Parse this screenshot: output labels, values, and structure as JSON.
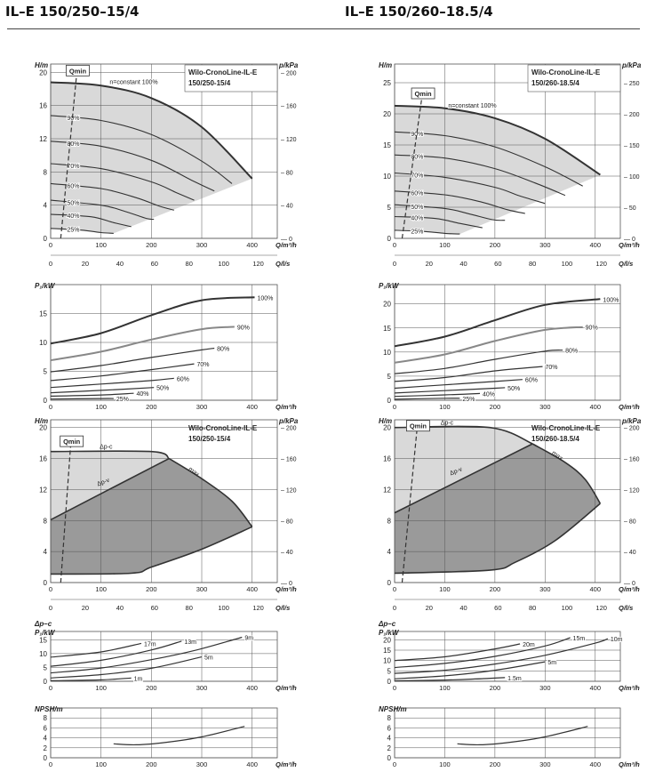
{
  "headers": {
    "left": "IL–E 150/250–15/4",
    "right": "IL–E 150/260–18.5/4"
  },
  "axes": {
    "H": "H/m",
    "p": "p/kPa",
    "Q": "Q/m³/h",
    "Ql": "Q/l/s",
    "P1": "P₁/kW",
    "dpc": "Δp–c",
    "NPSH": "NPSH/m"
  },
  "model_labels": {
    "left": [
      "Wilo-CronoLine-IL-E",
      "150/250-15/4"
    ],
    "right": [
      "Wilo-CronoLine-IL-E",
      "150/260-18.5/4"
    ]
  },
  "qmin": "Qmin",
  "nconst": "n=constant 100%",
  "dp_labels": {
    "c": "Δp-c",
    "v": "Δp-v",
    "max": "max"
  },
  "colors": {
    "curve": "#333333",
    "grey_curve": "#888888",
    "fill_light": "#d9d9d9",
    "fill_dark": "#9a9a9a",
    "grid": "#555555"
  },
  "chart_data": [
    {
      "id": "L1",
      "type": "line",
      "title": "Wilo-CronoLine-IL-E 150/250-15/4",
      "xlabel": "Q/m³/h",
      "ylabel": "H/m",
      "y2label": "p/kPa",
      "x2label": "Q/l/s",
      "xlim": [
        0,
        450
      ],
      "ylim": [
        0,
        21
      ],
      "xticks": [
        0,
        100,
        200,
        300,
        400
      ],
      "yticks": [
        0,
        4,
        8,
        12,
        16,
        20
      ],
      "y2ticks": [
        "0",
        "40",
        "80",
        "120",
        "160",
        "200"
      ],
      "x2ticks": [
        "0",
        "20",
        "40",
        "60",
        "80",
        "100",
        "120"
      ],
      "envelope": {
        "x": [
          0,
          100,
          200,
          300,
          400
        ],
        "y": [
          18.8,
          18.4,
          16.9,
          13.4,
          7.2
        ]
      },
      "series": [
        {
          "label": "90%",
          "x": [
            0,
            100,
            200,
            300,
            360
          ],
          "y": [
            14.8,
            14.2,
            12.5,
            9.3,
            6.6
          ]
        },
        {
          "label": "80%",
          "x": [
            0,
            100,
            200,
            280,
            325
          ],
          "y": [
            11.7,
            11.1,
            9.4,
            7.0,
            5.7
          ]
        },
        {
          "label": "70%",
          "x": [
            0,
            100,
            200,
            250,
            285
          ],
          "y": [
            9.0,
            8.4,
            6.8,
            5.5,
            4.6
          ]
        },
        {
          "label": "60%",
          "x": [
            0,
            100,
            170,
            215,
            245
          ],
          "y": [
            6.6,
            6.0,
            4.9,
            3.9,
            3.4
          ]
        },
        {
          "label": "50%",
          "x": [
            0,
            100,
            150,
            190,
            205
          ],
          "y": [
            4.6,
            4.0,
            3.2,
            2.4,
            2.3
          ]
        },
        {
          "label": "40%",
          "x": [
            0,
            80,
            125,
            160
          ],
          "y": [
            2.9,
            2.6,
            1.9,
            1.4
          ]
        },
        {
          "label": "25%",
          "x": [
            0,
            60,
            100,
            125
          ],
          "y": [
            1.2,
            1.0,
            0.7,
            0.6
          ]
        }
      ],
      "qmin_line": {
        "x": [
          20,
          52
        ],
        "y": [
          0,
          20
        ]
      }
    },
    {
      "id": "L2",
      "type": "line",
      "ylabel": "P₁/kW",
      "xlabel": "Q/m³/h",
      "xlim": [
        0,
        450
      ],
      "ylim": [
        0,
        20
      ],
      "xticks": [
        0,
        100,
        200,
        300,
        400
      ],
      "yticks": [
        0,
        5,
        10,
        15
      ],
      "series": [
        {
          "name": "100%",
          "x": [
            0,
            100,
            200,
            300,
            405
          ],
          "y": [
            9.8,
            11.6,
            14.7,
            17.3,
            17.8
          ]
        },
        {
          "name": "90%",
          "x": [
            0,
            100,
            200,
            300,
            365
          ],
          "y": [
            6.9,
            8.4,
            10.5,
            12.3,
            12.7
          ],
          "grey": true
        },
        {
          "name": "80%",
          "x": [
            0,
            100,
            200,
            300,
            325
          ],
          "y": [
            4.9,
            6.0,
            7.4,
            8.7,
            9.0
          ]
        },
        {
          "name": "70%",
          "x": [
            0,
            100,
            200,
            285
          ],
          "y": [
            3.4,
            4.2,
            5.3,
            6.3
          ]
        },
        {
          "name": "60%",
          "x": [
            0,
            100,
            200,
            245
          ],
          "y": [
            2.2,
            2.8,
            3.4,
            3.8
          ]
        },
        {
          "name": "50%",
          "x": [
            0,
            100,
            205
          ],
          "y": [
            1.3,
            1.7,
            2.2
          ]
        },
        {
          "name": "40%",
          "x": [
            0,
            100,
            165
          ],
          "y": [
            0.7,
            0.9,
            1.2
          ]
        },
        {
          "name": "25%",
          "x": [
            0,
            100,
            125
          ],
          "y": [
            0.2,
            0.3,
            0.3
          ]
        }
      ]
    },
    {
      "id": "L3",
      "type": "area",
      "ylabel": "H/m",
      "y2label": "p/kPa",
      "x2label": "Q/l/s",
      "xlabel": "Q/m³/h",
      "xlim": [
        0,
        450
      ],
      "ylim": [
        0,
        21
      ],
      "xticks": [
        0,
        100,
        200,
        300,
        400
      ],
      "yticks": [
        0,
        4,
        8,
        12,
        16,
        20
      ],
      "y2ticks": [
        "0",
        "40",
        "80",
        "120",
        "160",
        "200"
      ],
      "x2ticks": [
        "0",
        "20",
        "40",
        "60",
        "80",
        "100",
        "120"
      ],
      "dpc": {
        "x": [
          0,
          200,
          235
        ],
        "y": [
          16.9,
          16.9,
          16.0
        ]
      },
      "max": {
        "x": [
          235,
          300,
          360,
          400
        ],
        "y": [
          16.0,
          13.4,
          10.5,
          7.2
        ]
      },
      "dpv": {
        "x": [
          0,
          235
        ],
        "y": [
          8.1,
          16.0
        ]
      },
      "min": {
        "x": [
          0,
          160,
          200,
          300,
          400
        ],
        "y": [
          1.1,
          1.2,
          2.0,
          4.3,
          7.2
        ]
      },
      "qmin_line": {
        "x": [
          20,
          40
        ],
        "y": [
          0,
          18
        ]
      }
    },
    {
      "id": "L4",
      "type": "line",
      "ylabel": "P₁/kW",
      "y3label": "Δp–c",
      "xlabel": "Q/m³/h",
      "xlim": [
        0,
        450
      ],
      "ylim": [
        0,
        18
      ],
      "xticks": [
        0,
        100,
        200,
        300,
        400
      ],
      "yticks": [
        0,
        5,
        10,
        15
      ],
      "series": [
        {
          "name": "17m",
          "x": [
            0,
            100,
            180
          ],
          "y": [
            8.7,
            10.6,
            13.7
          ]
        },
        {
          "name": "13m",
          "x": [
            0,
            100,
            200,
            260
          ],
          "y": [
            5.4,
            7.6,
            11.3,
            14.5
          ]
        },
        {
          "name": "9m",
          "x": [
            0,
            100,
            200,
            290,
            380
          ],
          "y": [
            3.0,
            4.8,
            7.8,
            11.3,
            15.9
          ]
        },
        {
          "name": "5m",
          "x": [
            0,
            100,
            200,
            300
          ],
          "y": [
            1.2,
            2.4,
            4.7,
            8.8
          ]
        },
        {
          "name": "1m",
          "x": [
            0,
            100,
            160
          ],
          "y": [
            0.2,
            0.5,
            1.2
          ]
        }
      ]
    },
    {
      "id": "L5",
      "type": "line",
      "ylabel": "NPSH/m",
      "xlabel": "Q/m³/h",
      "xlim": [
        0,
        450
      ],
      "ylim": [
        0,
        10
      ],
      "xticks": [
        0,
        100,
        200,
        300,
        400
      ],
      "yticks": [
        0,
        2,
        4,
        6,
        8
      ],
      "series": [
        {
          "x": [
            125,
            170,
            230,
            300,
            385
          ],
          "y": [
            2.8,
            2.6,
            3.1,
            4.2,
            6.3
          ]
        }
      ]
    },
    {
      "id": "R1",
      "type": "line",
      "title": "Wilo-CronoLine-IL-E 150/260-18.5/4",
      "xlabel": "Q/m³/h",
      "ylabel": "H/m",
      "y2label": "p/kPa",
      "x2label": "Q/l/s",
      "xlim": [
        0,
        450
      ],
      "ylim": [
        0,
        28
      ],
      "xticks": [
        0,
        100,
        200,
        300,
        400
      ],
      "yticks": [
        0,
        5,
        10,
        15,
        20,
        25
      ],
      "y2ticks": [
        "0",
        "50",
        "100",
        "150",
        "200",
        "250"
      ],
      "x2ticks": [
        "0",
        "20",
        "40",
        "60",
        "80",
        "100",
        "120"
      ],
      "envelope": {
        "x": [
          0,
          100,
          200,
          300,
          410
        ],
        "y": [
          21.3,
          20.9,
          19.3,
          16.0,
          10.2
        ]
      },
      "series": [
        {
          "label": "90%",
          "x": [
            0,
            100,
            200,
            300,
            375
          ],
          "y": [
            17.1,
            16.5,
            14.7,
            11.5,
            8.4
          ]
        },
        {
          "label": "80%",
          "x": [
            0,
            100,
            200,
            280,
            340
          ],
          "y": [
            13.4,
            12.9,
            11.2,
            8.9,
            6.9
          ]
        },
        {
          "label": "70%",
          "x": [
            0,
            100,
            200,
            250,
            300
          ],
          "y": [
            10.5,
            9.8,
            8.2,
            6.8,
            5.6
          ]
        },
        {
          "label": "60%",
          "x": [
            0,
            100,
            170,
            225,
            260
          ],
          "y": [
            7.6,
            7.0,
            5.9,
            4.6,
            4.0
          ]
        },
        {
          "label": "50%",
          "x": [
            0,
            100,
            150,
            195,
            220
          ],
          "y": [
            5.4,
            4.8,
            3.9,
            3.0,
            2.9
          ]
        },
        {
          "label": "40%",
          "x": [
            0,
            80,
            130,
            175
          ],
          "y": [
            3.5,
            3.2,
            2.4,
            1.7
          ]
        },
        {
          "label": "25%",
          "x": [
            0,
            60,
            100,
            130
          ],
          "y": [
            1.3,
            1.1,
            0.8,
            0.7
          ]
        }
      ],
      "qmin_line": {
        "x": [
          15,
          55
        ],
        "y": [
          0,
          23
        ]
      }
    },
    {
      "id": "R2",
      "type": "line",
      "ylabel": "P₁/kW",
      "xlabel": "Q/m³/h",
      "xlim": [
        0,
        450
      ],
      "ylim": [
        0,
        24
      ],
      "xticks": [
        0,
        100,
        200,
        300,
        400
      ],
      "yticks": [
        0,
        5,
        10,
        15,
        20
      ],
      "series": [
        {
          "name": "100%",
          "x": [
            0,
            100,
            200,
            300,
            410
          ],
          "y": [
            11.2,
            13.2,
            16.6,
            19.8,
            21.0
          ]
        },
        {
          "name": "90%",
          "x": [
            0,
            100,
            200,
            300,
            375
          ],
          "y": [
            7.8,
            9.5,
            12.3,
            14.6,
            15.2
          ],
          "grey": true
        },
        {
          "name": "80%",
          "x": [
            0,
            100,
            200,
            300,
            335
          ],
          "y": [
            5.5,
            6.6,
            8.5,
            10.2,
            10.4
          ]
        },
        {
          "name": "70%",
          "x": [
            0,
            100,
            200,
            295
          ],
          "y": [
            3.9,
            4.7,
            6.1,
            7.0
          ]
        },
        {
          "name": "60%",
          "x": [
            0,
            100,
            200,
            255
          ],
          "y": [
            2.5,
            3.2,
            3.9,
            4.3
          ]
        },
        {
          "name": "50%",
          "x": [
            0,
            100,
            200,
            220
          ],
          "y": [
            1.5,
            2.0,
            2.5,
            2.6
          ]
        },
        {
          "name": "40%",
          "x": [
            0,
            100,
            170
          ],
          "y": [
            0.8,
            1.1,
            1.4
          ]
        },
        {
          "name": "25%",
          "x": [
            0,
            100,
            130
          ],
          "y": [
            0.2,
            0.4,
            0.4
          ]
        }
      ]
    },
    {
      "id": "R3",
      "type": "area",
      "ylabel": "H/m",
      "y2label": "p/kPa",
      "x2label": "Q/l/s",
      "xlabel": "Q/m³/h",
      "xlim": [
        0,
        450
      ],
      "ylim": [
        0,
        21
      ],
      "xticks": [
        0,
        100,
        200,
        300,
        400
      ],
      "yticks": [
        0,
        4,
        8,
        12,
        16,
        20
      ],
      "y2ticks": [
        "0",
        "40",
        "80",
        "120",
        "160",
        "200"
      ],
      "x2ticks": [
        "0",
        "20",
        "40",
        "60",
        "80",
        "100",
        "120"
      ],
      "dpc": {
        "x": [
          0,
          190,
          275
        ],
        "y": [
          20.0,
          20.0,
          17.9
        ]
      },
      "max": {
        "x": [
          275,
          340,
          380,
          410
        ],
        "y": [
          17.9,
          15.5,
          13.3,
          10.2
        ]
      },
      "dpv": {
        "x": [
          0,
          275
        ],
        "y": [
          9.0,
          17.9
        ]
      },
      "min": {
        "x": [
          0,
          190,
          240,
          320,
          410
        ],
        "y": [
          1.2,
          1.6,
          2.6,
          5.4,
          10.2
        ]
      },
      "qmin_line": {
        "x": [
          15,
          45
        ],
        "y": [
          0,
          20
        ]
      }
    },
    {
      "id": "R4",
      "type": "line",
      "ylabel": "P₁/kW",
      "y3label": "Δp–c",
      "xlabel": "Q/m³/h",
      "xlim": [
        0,
        450
      ],
      "ylim": [
        0,
        24
      ],
      "xticks": [
        0,
        100,
        200,
        300,
        400
      ],
      "yticks": [
        0,
        5,
        10,
        15,
        20
      ],
      "series": [
        {
          "name": "20m",
          "x": [
            0,
            100,
            200,
            250
          ],
          "y": [
            10.0,
            11.8,
            15.6,
            18.0
          ]
        },
        {
          "name": "15m",
          "x": [
            0,
            100,
            200,
            300,
            350
          ],
          "y": [
            6.6,
            8.6,
            12.0,
            17.0,
            21.0
          ]
        },
        {
          "name": "10m",
          "x": [
            0,
            100,
            200,
            300,
            400,
            425
          ],
          "y": [
            3.8,
            5.3,
            8.3,
            12.5,
            18.4,
            20.5
          ]
        },
        {
          "name": "5m",
          "x": [
            0,
            100,
            200,
            300
          ],
          "y": [
            1.2,
            2.6,
            5.3,
            9.4
          ]
        },
        {
          "name": "1.5m",
          "x": [
            0,
            100,
            160,
            220
          ],
          "y": [
            0.2,
            0.6,
            1.1,
            1.8
          ]
        }
      ]
    },
    {
      "id": "R5",
      "type": "line",
      "ylabel": "NPSH/m",
      "xlabel": "Q/m³/h",
      "xlim": [
        0,
        450
      ],
      "ylim": [
        0,
        10
      ],
      "xticks": [
        0,
        100,
        200,
        300,
        400
      ],
      "yticks": [
        0,
        2,
        4,
        6,
        8
      ],
      "series": [
        {
          "x": [
            125,
            170,
            230,
            300,
            385
          ],
          "y": [
            2.8,
            2.6,
            3.1,
            4.2,
            6.3
          ]
        }
      ]
    }
  ]
}
